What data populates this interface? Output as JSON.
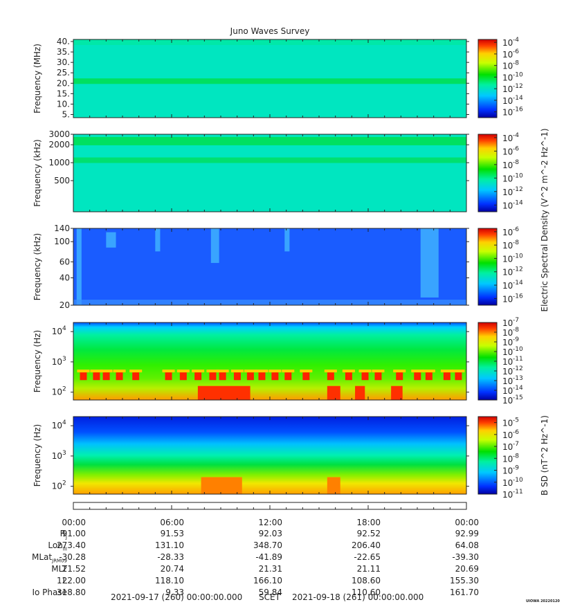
{
  "title": "Juno Waves Survey",
  "chart_data": [
    {
      "type": "heatmap",
      "ylabel": "Frequency (MHz)",
      "yticks": [
        "40.",
        "35.",
        "30.",
        "25.",
        "20.",
        "15.",
        "10.",
        "5."
      ],
      "ylim": [
        3.5,
        41
      ],
      "colorbar_ticks": [
        "-4",
        "-6",
        "-8",
        "-10",
        "-12",
        "-14",
        "-16"
      ],
      "colorbar_range": [
        -17,
        -3.5
      ],
      "features": "uniform cyan background with a green horizontal band near 21 MHz"
    },
    {
      "type": "heatmap",
      "ylabel": "Frequency (kHz)",
      "yticks": [
        "3000",
        "2000",
        "1000",
        "500"
      ],
      "scale": "log",
      "colorbar_ticks": [
        "-4",
        "-6",
        "-8",
        "-10",
        "-12",
        "-14"
      ],
      "colorbar_range": [
        -15,
        -3.5
      ],
      "colorbar_title": "Electric Spectral Density (V^2 m^-2 Hz^-1)",
      "features": "cyan background with green bands near 2300 kHz and 1100 kHz"
    },
    {
      "type": "heatmap",
      "ylabel": "Frequency (kHz)",
      "yticks": [
        "140",
        "100",
        "60",
        "40",
        "20"
      ],
      "scale": "log",
      "colorbar_ticks": [
        "-6",
        "-8",
        "-10",
        "-12",
        "-14",
        "-16"
      ],
      "colorbar_range": [
        -17,
        -5.5
      ],
      "features": "blue background with light-blue emission streaks"
    },
    {
      "type": "heatmap",
      "ylabel": "Frequency (Hz)",
      "yticks": [
        "10^4",
        "10^3",
        "10^2"
      ],
      "scale": "log",
      "colorbar_ticks": [
        "-7",
        "-8",
        "-9",
        "-10",
        "-11",
        "-12",
        "-13",
        "-14",
        "-15"
      ],
      "colorbar_range": [
        -15,
        -7
      ],
      "features": "green/cyan whistler band with red/yellow bursts between 100 and 700 Hz"
    },
    {
      "type": "heatmap",
      "ylabel": "Frequency (Hz)",
      "yticks": [
        "10^4",
        "10^3",
        "10^2"
      ],
      "scale": "log",
      "colorbar_ticks": [
        "-5",
        "-6",
        "-7",
        "-8",
        "-9",
        "-10",
        "-11"
      ],
      "colorbar_range": [
        -11,
        -4.5
      ],
      "colorbar_title": "B SD (nT^2 Hz^-1)",
      "features": "blue at high frequency grading through cyan and green to yellow/orange below 200 Hz"
    }
  ],
  "colorbar_base": "10",
  "time_ticks": [
    "00:00",
    "06:00",
    "12:00",
    "18:00",
    "00:00"
  ],
  "ephemeris": {
    "rows": [
      {
        "label": "R",
        "sub": "J",
        "values": [
          "91.00",
          "91.53",
          "92.03",
          "92.52",
          "92.99"
        ]
      },
      {
        "label": "Lon",
        "sub": "III",
        "values": [
          "273.40",
          "131.10",
          "348.70",
          "206.40",
          "64.08"
        ]
      },
      {
        "label": "MLat",
        "sub": "JRM09",
        "values": [
          "-30.28",
          "-28.33",
          "-41.89",
          "-22.65",
          "-39.30"
        ]
      },
      {
        "label": "MLT",
        "sub": "",
        "values": [
          "21.52",
          "20.74",
          "21.31",
          "21.11",
          "20.69"
        ]
      },
      {
        "label": "L",
        "sub": "",
        "values": [
          "122.00",
          "118.10",
          "166.10",
          "108.60",
          "155.30"
        ]
      },
      {
        "label": "Io Phase",
        "sub": "",
        "values": [
          "318.80",
          "9.33",
          "59.84",
          "110.60",
          "161.70"
        ]
      }
    ]
  },
  "footer": {
    "start": "2021-09-17 (260) 00:00:00.000",
    "frame": "SCET",
    "end": "2021-09-18 (261) 00:00:00.000"
  },
  "credit": "UIOWA 20220120"
}
